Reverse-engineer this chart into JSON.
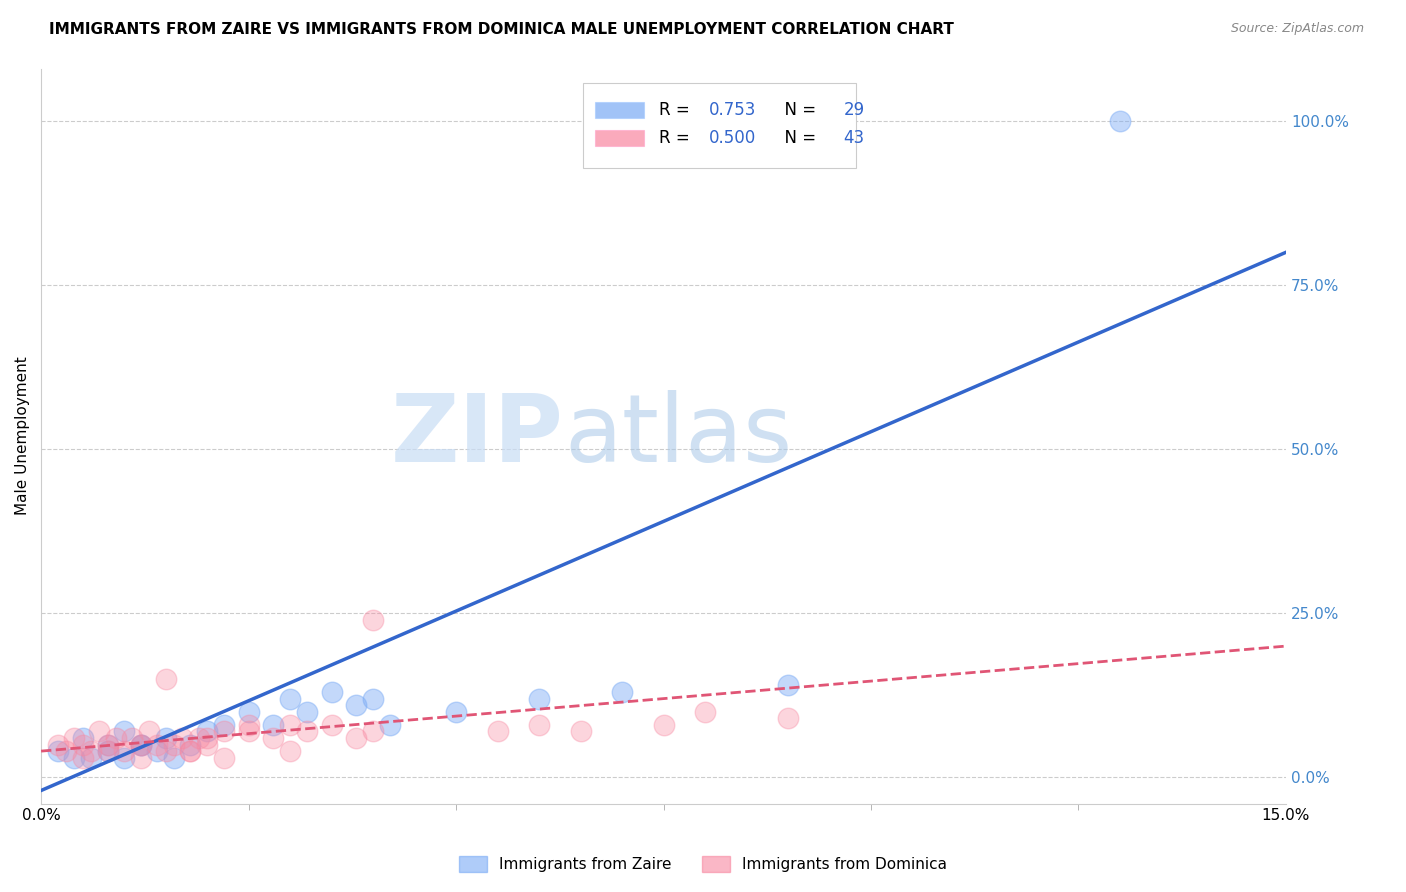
{
  "title": "IMMIGRANTS FROM ZAIRE VS IMMIGRANTS FROM DOMINICA MALE UNEMPLOYMENT CORRELATION CHART",
  "source": "Source: ZipAtlas.com",
  "ylabel": "Male Unemployment",
  "ylabel_right_ticks": [
    "0.0%",
    "25.0%",
    "50.0%",
    "75.0%",
    "100.0%"
  ],
  "ylabel_right_vals": [
    0.0,
    0.25,
    0.5,
    0.75,
    1.0
  ],
  "xmin": 0.0,
  "xmax": 0.15,
  "ymin": -0.04,
  "ymax": 1.08,
  "zaire_color": "#7aaaf5",
  "dominica_color": "#f887a0",
  "zaire_line_color": "#3366cc",
  "dominica_line_color": "#e05575",
  "zaire_R": "0.753",
  "zaire_N": "29",
  "dominica_R": "0.500",
  "dominica_N": "43",
  "watermark_zip": "ZIP",
  "watermark_atlas": "atlas",
  "zaire_line_x0": 0.0,
  "zaire_line_y0": -0.02,
  "zaire_line_x1": 0.15,
  "zaire_line_y1": 0.8,
  "dominica_line_x0": 0.0,
  "dominica_line_y0": 0.04,
  "dominica_line_x1": 0.15,
  "dominica_line_y1": 0.2,
  "zaire_scatter_x": [
    0.002,
    0.004,
    0.006,
    0.008,
    0.01,
    0.012,
    0.014,
    0.016,
    0.005,
    0.008,
    0.01,
    0.012,
    0.015,
    0.018,
    0.02,
    0.022,
    0.025,
    0.028,
    0.03,
    0.032,
    0.035,
    0.038,
    0.04,
    0.042,
    0.05,
    0.06,
    0.07,
    0.09,
    0.13
  ],
  "zaire_scatter_y": [
    0.04,
    0.03,
    0.03,
    0.04,
    0.03,
    0.05,
    0.04,
    0.03,
    0.06,
    0.05,
    0.07,
    0.05,
    0.06,
    0.05,
    0.07,
    0.08,
    0.1,
    0.08,
    0.12,
    0.1,
    0.13,
    0.11,
    0.12,
    0.08,
    0.1,
    0.12,
    0.13,
    0.14,
    1.0
  ],
  "dominica_scatter_x": [
    0.002,
    0.003,
    0.004,
    0.005,
    0.006,
    0.007,
    0.008,
    0.009,
    0.01,
    0.011,
    0.012,
    0.013,
    0.014,
    0.015,
    0.016,
    0.017,
    0.018,
    0.019,
    0.02,
    0.022,
    0.025,
    0.028,
    0.03,
    0.032,
    0.035,
    0.038,
    0.04,
    0.015,
    0.02,
    0.025,
    0.055,
    0.06,
    0.065,
    0.075,
    0.08,
    0.09,
    0.005,
    0.008,
    0.012,
    0.018,
    0.022,
    0.03,
    0.04
  ],
  "dominica_scatter_y": [
    0.05,
    0.04,
    0.06,
    0.05,
    0.04,
    0.07,
    0.05,
    0.06,
    0.04,
    0.06,
    0.05,
    0.07,
    0.05,
    0.15,
    0.05,
    0.06,
    0.04,
    0.06,
    0.05,
    0.07,
    0.08,
    0.06,
    0.08,
    0.07,
    0.08,
    0.06,
    0.07,
    0.04,
    0.06,
    0.07,
    0.07,
    0.08,
    0.07,
    0.08,
    0.1,
    0.09,
    0.03,
    0.04,
    0.03,
    0.04,
    0.03,
    0.04,
    0.24
  ]
}
